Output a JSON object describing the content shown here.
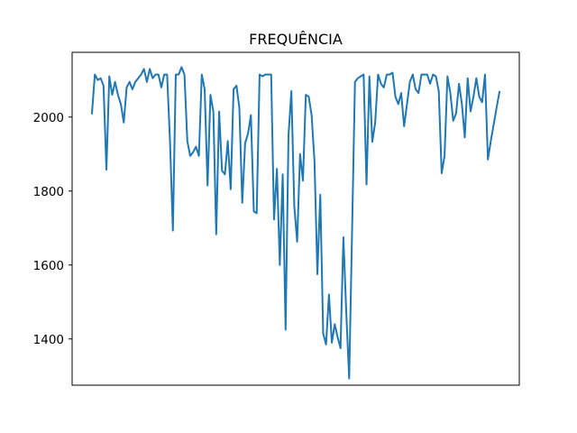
{
  "chart_data": {
    "type": "line",
    "title": "FREQUÊNCIA",
    "xlabel": "",
    "ylabel": "",
    "xlim": [
      0,
      154
    ],
    "ylim": [
      1275,
      2175
    ],
    "x_ticks_shown": false,
    "y_ticks": [
      "1400",
      "1600",
      "1800",
      "2000"
    ],
    "grid": false,
    "line_color": "#1f77b4",
    "series": [
      {
        "values": [
          2010,
          2115,
          2100,
          2105,
          2085,
          1858,
          2110,
          2060,
          2095,
          2060,
          2035,
          1985,
          2080,
          2095,
          2075,
          2095,
          2105,
          2115,
          2130,
          2095,
          2130,
          2105,
          2115,
          2115,
          2080,
          2115,
          2115,
          1935,
          1693,
          2115,
          2115,
          2135,
          2115,
          1935,
          1895,
          1905,
          1920,
          1895,
          2115,
          2075,
          1815,
          2060,
          2015,
          1683,
          2015,
          1855,
          1845,
          1935,
          1805,
          2075,
          2085,
          2025,
          1768,
          1930,
          1955,
          2005,
          1745,
          1740,
          2115,
          2110,
          2115,
          2115,
          2115,
          1723,
          1860,
          1600,
          1845,
          1425,
          1950,
          2070,
          1760,
          1663,
          1900,
          1828,
          2060,
          2055,
          2005,
          1880,
          1575,
          1790,
          1415,
          1385,
          1520,
          1390,
          1440,
          1405,
          1375,
          1675,
          1470,
          1293,
          1690,
          2095,
          2105,
          2110,
          2115,
          1818,
          2110,
          1933,
          1985,
          2115,
          2090,
          2080,
          2115,
          2115,
          2120,
          2055,
          2035,
          2065,
          1975,
          2035,
          2095,
          2115,
          2075,
          2065,
          2115,
          2115,
          2115,
          2090,
          2115,
          2110,
          2070,
          1848,
          1895,
          2110,
          2065,
          1990,
          2010,
          2090,
          2035,
          1945,
          2105,
          2015,
          2055,
          2105,
          2055,
          2040,
          2115,
          1885,
          1935,
          1980,
          2025,
          2068
        ]
      }
    ]
  }
}
